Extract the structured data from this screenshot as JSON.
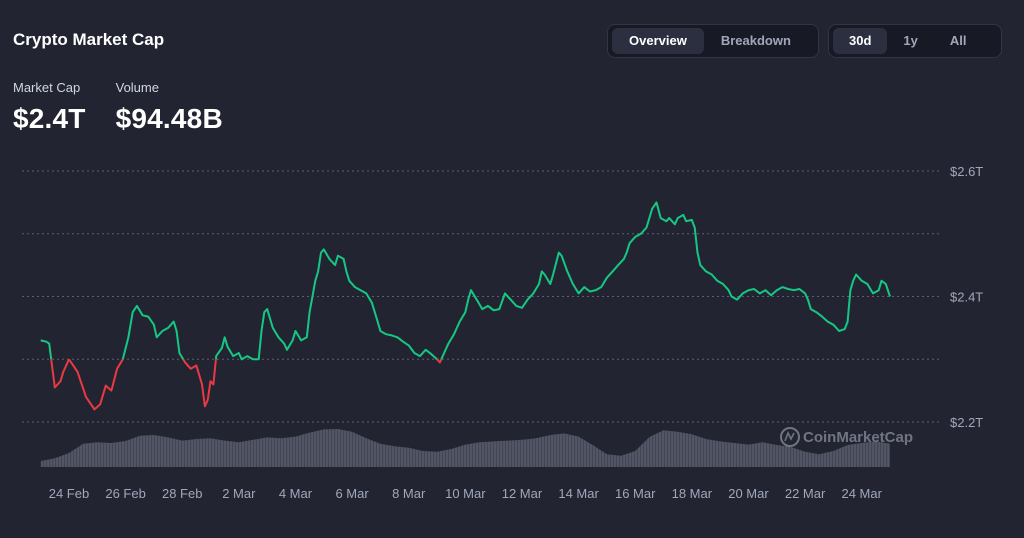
{
  "header": {
    "title": "Crypto Market Cap"
  },
  "stats": [
    {
      "label": "Market Cap",
      "value": "$2.4T"
    },
    {
      "label": "Volume",
      "value": "$94.48B"
    }
  ],
  "view_tabs": [
    {
      "label": "Overview",
      "active": true
    },
    {
      "label": "Breakdown",
      "active": false
    }
  ],
  "range_tabs": [
    {
      "label": "30d",
      "active": true
    },
    {
      "label": "1y",
      "active": false
    },
    {
      "label": "All",
      "active": false
    }
  ],
  "watermark": "CoinMarketCap",
  "colors": {
    "up": "#16c784",
    "down": "#ea3943",
    "grid": "#5a5f73",
    "text": "#a1a7bb",
    "volume": "#5b5f6e"
  },
  "chart_data": {
    "type": "line",
    "title": "",
    "xlabel": "",
    "ylabel": "",
    "baseline": 2.3,
    "ylim": [
      2.15,
      2.63
    ],
    "yticks": [
      2.2,
      2.3,
      2.4,
      2.5,
      2.6
    ],
    "ytick_labels": [
      "$2.2T",
      "",
      "$2.4T",
      "",
      "$2.6T"
    ],
    "x_range": [
      22.8,
      54.2
    ],
    "x_tick_labels": [
      {
        "x": 24,
        "label": "24 Feb"
      },
      {
        "x": 26,
        "label": "26 Feb"
      },
      {
        "x": 28,
        "label": "28 Feb"
      },
      {
        "x": 30,
        "label": "2 Mar"
      },
      {
        "x": 32,
        "label": "4 Mar"
      },
      {
        "x": 34,
        "label": "6 Mar"
      },
      {
        "x": 36,
        "label": "8 Mar"
      },
      {
        "x": 38,
        "label": "10 Mar"
      },
      {
        "x": 40,
        "label": "12 Mar"
      },
      {
        "x": 42,
        "label": "14 Mar"
      },
      {
        "x": 44,
        "label": "16 Mar"
      },
      {
        "x": 46,
        "label": "18 Mar"
      },
      {
        "x": 48,
        "label": "20 Mar"
      },
      {
        "x": 50,
        "label": "22 Mar"
      },
      {
        "x": 52,
        "label": "24 Mar"
      }
    ],
    "series": [
      {
        "values": [
          [
            23.0,
            2.33
          ],
          [
            23.2,
            2.328
          ],
          [
            23.3,
            2.325
          ],
          [
            23.4,
            2.29
          ],
          [
            23.5,
            2.255
          ],
          [
            23.7,
            2.265
          ],
          [
            23.8,
            2.28
          ],
          [
            24.0,
            2.3
          ],
          [
            24.3,
            2.28
          ],
          [
            24.6,
            2.24
          ],
          [
            24.9,
            2.22
          ],
          [
            25.1,
            2.228
          ],
          [
            25.3,
            2.258
          ],
          [
            25.5,
            2.25
          ],
          [
            25.7,
            2.285
          ],
          [
            25.9,
            2.3
          ],
          [
            26.1,
            2.335
          ],
          [
            26.25,
            2.375
          ],
          [
            26.4,
            2.385
          ],
          [
            26.6,
            2.37
          ],
          [
            26.8,
            2.368
          ],
          [
            27.0,
            2.355
          ],
          [
            27.1,
            2.335
          ],
          [
            27.3,
            2.345
          ],
          [
            27.5,
            2.35
          ],
          [
            27.7,
            2.36
          ],
          [
            27.8,
            2.345
          ],
          [
            27.9,
            2.31
          ],
          [
            28.1,
            2.295
          ],
          [
            28.3,
            2.285
          ],
          [
            28.5,
            2.29
          ],
          [
            28.7,
            2.26
          ],
          [
            28.8,
            2.225
          ],
          [
            28.9,
            2.235
          ],
          [
            29.0,
            2.265
          ],
          [
            29.1,
            2.26
          ],
          [
            29.2,
            2.305
          ],
          [
            29.4,
            2.318
          ],
          [
            29.5,
            2.335
          ],
          [
            29.6,
            2.32
          ],
          [
            29.8,
            2.305
          ],
          [
            30.0,
            2.31
          ],
          [
            30.1,
            2.3
          ],
          [
            30.3,
            2.305
          ],
          [
            30.5,
            2.3
          ],
          [
            30.7,
            2.3
          ],
          [
            30.8,
            2.345
          ],
          [
            30.9,
            2.375
          ],
          [
            31.0,
            2.38
          ],
          [
            31.2,
            2.35
          ],
          [
            31.4,
            2.335
          ],
          [
            31.6,
            2.325
          ],
          [
            31.7,
            2.315
          ],
          [
            31.9,
            2.33
          ],
          [
            32.0,
            2.345
          ],
          [
            32.2,
            2.33
          ],
          [
            32.4,
            2.335
          ],
          [
            32.5,
            2.375
          ],
          [
            32.7,
            2.425
          ],
          [
            32.8,
            2.44
          ],
          [
            32.9,
            2.47
          ],
          [
            33.0,
            2.475
          ],
          [
            33.2,
            2.46
          ],
          [
            33.4,
            2.45
          ],
          [
            33.5,
            2.465
          ],
          [
            33.7,
            2.46
          ],
          [
            33.8,
            2.44
          ],
          [
            33.9,
            2.425
          ],
          [
            34.1,
            2.415
          ],
          [
            34.3,
            2.41
          ],
          [
            34.5,
            2.405
          ],
          [
            34.7,
            2.39
          ],
          [
            34.9,
            2.36
          ],
          [
            35.0,
            2.345
          ],
          [
            35.2,
            2.34
          ],
          [
            35.4,
            2.338
          ],
          [
            35.6,
            2.335
          ],
          [
            35.8,
            2.328
          ],
          [
            36.0,
            2.322
          ],
          [
            36.2,
            2.31
          ],
          [
            36.4,
            2.305
          ],
          [
            36.6,
            2.315
          ],
          [
            36.8,
            2.308
          ],
          [
            37.0,
            2.3
          ],
          [
            37.1,
            2.295
          ],
          [
            37.2,
            2.305
          ],
          [
            37.4,
            2.325
          ],
          [
            37.6,
            2.34
          ],
          [
            37.8,
            2.36
          ],
          [
            38.0,
            2.375
          ],
          [
            38.1,
            2.395
          ],
          [
            38.2,
            2.41
          ],
          [
            38.4,
            2.395
          ],
          [
            38.6,
            2.38
          ],
          [
            38.8,
            2.385
          ],
          [
            39.0,
            2.378
          ],
          [
            39.2,
            2.38
          ],
          [
            39.4,
            2.405
          ],
          [
            39.6,
            2.395
          ],
          [
            39.8,
            2.385
          ],
          [
            40.0,
            2.382
          ],
          [
            40.2,
            2.395
          ],
          [
            40.4,
            2.405
          ],
          [
            40.6,
            2.42
          ],
          [
            40.7,
            2.44
          ],
          [
            40.8,
            2.435
          ],
          [
            41.0,
            2.42
          ],
          [
            41.1,
            2.435
          ],
          [
            41.3,
            2.47
          ],
          [
            41.4,
            2.465
          ],
          [
            41.6,
            2.44
          ],
          [
            41.8,
            2.42
          ],
          [
            42.0,
            2.405
          ],
          [
            42.2,
            2.415
          ],
          [
            42.4,
            2.408
          ],
          [
            42.6,
            2.41
          ],
          [
            42.8,
            2.415
          ],
          [
            43.0,
            2.43
          ],
          [
            43.2,
            2.44
          ],
          [
            43.4,
            2.45
          ],
          [
            43.6,
            2.46
          ],
          [
            43.7,
            2.47
          ],
          [
            43.8,
            2.485
          ],
          [
            44.0,
            2.495
          ],
          [
            44.2,
            2.5
          ],
          [
            44.4,
            2.51
          ],
          [
            44.6,
            2.54
          ],
          [
            44.75,
            2.55
          ],
          [
            44.9,
            2.525
          ],
          [
            45.1,
            2.52
          ],
          [
            45.2,
            2.525
          ],
          [
            45.4,
            2.515
          ],
          [
            45.5,
            2.525
          ],
          [
            45.7,
            2.53
          ],
          [
            45.8,
            2.52
          ],
          [
            46.0,
            2.522
          ],
          [
            46.1,
            2.51
          ],
          [
            46.2,
            2.47
          ],
          [
            46.3,
            2.45
          ],
          [
            46.5,
            2.44
          ],
          [
            46.7,
            2.435
          ],
          [
            46.9,
            2.425
          ],
          [
            47.1,
            2.42
          ],
          [
            47.3,
            2.41
          ],
          [
            47.4,
            2.4
          ],
          [
            47.6,
            2.395
          ],
          [
            47.8,
            2.405
          ],
          [
            48.0,
            2.41
          ],
          [
            48.2,
            2.412
          ],
          [
            48.4,
            2.405
          ],
          [
            48.6,
            2.41
          ],
          [
            48.8,
            2.402
          ],
          [
            49.0,
            2.41
          ],
          [
            49.2,
            2.415
          ],
          [
            49.4,
            2.412
          ],
          [
            49.6,
            2.41
          ],
          [
            49.8,
            2.412
          ],
          [
            50.0,
            2.405
          ],
          [
            50.1,
            2.395
          ],
          [
            50.2,
            2.38
          ],
          [
            50.4,
            2.375
          ],
          [
            50.6,
            2.368
          ],
          [
            50.8,
            2.36
          ],
          [
            51.0,
            2.355
          ],
          [
            51.2,
            2.345
          ],
          [
            51.4,
            2.348
          ],
          [
            51.5,
            2.36
          ],
          [
            51.6,
            2.41
          ],
          [
            51.7,
            2.425
          ],
          [
            51.8,
            2.435
          ],
          [
            52.0,
            2.425
          ],
          [
            52.2,
            2.42
          ],
          [
            52.4,
            2.405
          ],
          [
            52.6,
            2.41
          ],
          [
            52.7,
            2.425
          ],
          [
            52.85,
            2.42
          ],
          [
            53.0,
            2.4
          ]
        ]
      }
    ],
    "volume": [
      [
        23.0,
        0.15
      ],
      [
        23.5,
        0.22
      ],
      [
        24.0,
        0.35
      ],
      [
        24.5,
        0.58
      ],
      [
        25.0,
        0.62
      ],
      [
        25.5,
        0.6
      ],
      [
        26.0,
        0.65
      ],
      [
        26.5,
        0.78
      ],
      [
        27.0,
        0.8
      ],
      [
        27.5,
        0.74
      ],
      [
        28.0,
        0.66
      ],
      [
        28.5,
        0.7
      ],
      [
        29.0,
        0.72
      ],
      [
        29.5,
        0.66
      ],
      [
        30.0,
        0.62
      ],
      [
        30.5,
        0.68
      ],
      [
        31.0,
        0.74
      ],
      [
        31.5,
        0.72
      ],
      [
        32.0,
        0.76
      ],
      [
        32.5,
        0.86
      ],
      [
        33.0,
        0.94
      ],
      [
        33.5,
        0.95
      ],
      [
        34.0,
        0.88
      ],
      [
        34.5,
        0.72
      ],
      [
        35.0,
        0.58
      ],
      [
        35.5,
        0.52
      ],
      [
        36.0,
        0.48
      ],
      [
        36.5,
        0.4
      ],
      [
        37.0,
        0.38
      ],
      [
        37.5,
        0.45
      ],
      [
        38.0,
        0.56
      ],
      [
        38.5,
        0.62
      ],
      [
        39.0,
        0.64
      ],
      [
        39.5,
        0.66
      ],
      [
        40.0,
        0.68
      ],
      [
        40.5,
        0.72
      ],
      [
        41.0,
        0.8
      ],
      [
        41.5,
        0.84
      ],
      [
        42.0,
        0.76
      ],
      [
        42.5,
        0.55
      ],
      [
        43.0,
        0.32
      ],
      [
        43.5,
        0.28
      ],
      [
        44.0,
        0.4
      ],
      [
        44.5,
        0.75
      ],
      [
        45.0,
        0.92
      ],
      [
        45.5,
        0.88
      ],
      [
        46.0,
        0.82
      ],
      [
        46.5,
        0.7
      ],
      [
        47.0,
        0.64
      ],
      [
        47.5,
        0.6
      ],
      [
        48.0,
        0.56
      ],
      [
        48.5,
        0.62
      ],
      [
        49.0,
        0.55
      ],
      [
        49.5,
        0.5
      ],
      [
        50.0,
        0.38
      ],
      [
        50.5,
        0.32
      ],
      [
        51.0,
        0.4
      ],
      [
        51.5,
        0.55
      ],
      [
        52.0,
        0.6
      ],
      [
        52.5,
        0.64
      ],
      [
        53.0,
        0.58
      ]
    ]
  }
}
